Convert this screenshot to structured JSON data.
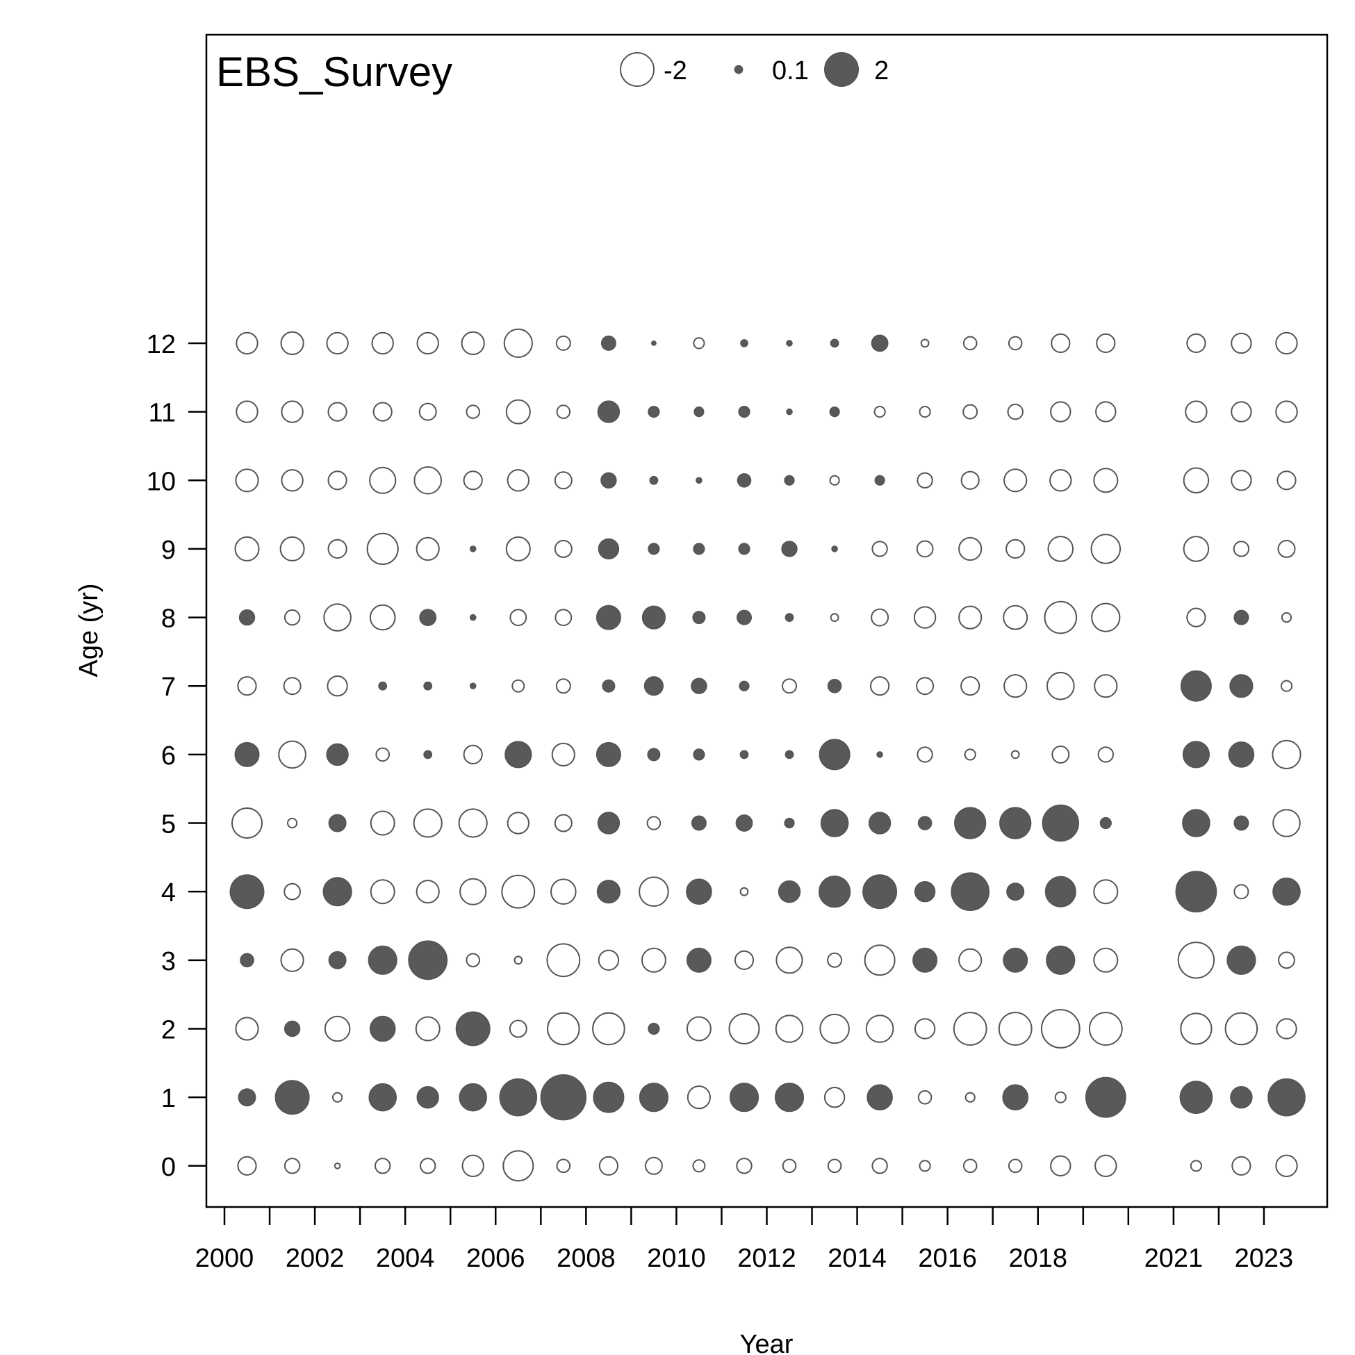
{
  "chart_data": {
    "type": "scatter",
    "subtype": "bubble",
    "title": "EBS_Survey",
    "xlabel": "Year",
    "ylabel": "Age (yr)",
    "xlim": [
      1999.6,
      2024.4
    ],
    "ylim": [
      -0.6,
      16.5
    ],
    "x_ticks": [
      2000,
      2001,
      2002,
      2003,
      2004,
      2005,
      2006,
      2007,
      2008,
      2009,
      2010,
      2011,
      2012,
      2013,
      2014,
      2015,
      2016,
      2017,
      2018,
      2019,
      2020,
      2021,
      2022,
      2023
    ],
    "x_tick_labels": [
      "2000",
      "2002",
      "2004",
      "2006",
      "2008",
      "2010",
      "2012",
      "2014",
      "2016",
      "2018",
      "2021",
      "2023"
    ],
    "y_ticks": [
      0,
      1,
      2,
      3,
      4,
      5,
      6,
      7,
      8,
      9,
      10,
      11,
      12
    ],
    "y_tick_labels": [
      "0",
      "1",
      "2",
      "3",
      "4",
      "5",
      "6",
      "7",
      "8",
      "9",
      "10",
      "11",
      "12"
    ],
    "grid": false,
    "legend": {
      "placement": "top-center",
      "entries": [
        {
          "label": "-2",
          "value": -2
        },
        {
          "label": "0.1",
          "value": 0.1
        },
        {
          "label": "2",
          "value": 2
        }
      ]
    },
    "colors": {
      "positive_fill": "#595959",
      "negative_fill": "#ffffff",
      "stroke": "#555555"
    },
    "years": [
      2000.5,
      2001.5,
      2002.5,
      2003.5,
      2004.5,
      2005.5,
      2006.5,
      2007.5,
      2008.5,
      2009.5,
      2010.5,
      2011.5,
      2012.5,
      2013.5,
      2014.5,
      2015.5,
      2016.5,
      2017.5,
      2018.5,
      2019.5,
      2021.5,
      2022.5,
      2023.5
    ],
    "ages": [
      0,
      1,
      2,
      3,
      4,
      5,
      6,
      7,
      8,
      9,
      10,
      11,
      12
    ],
    "residuals": [
      [
        -0.6,
        -0.4,
        -0.05,
        -0.4,
        -0.4,
        -0.8,
        -1.6,
        -0.3,
        -0.6,
        -0.5,
        -0.25,
        -0.4,
        -0.3,
        -0.3,
        -0.4,
        -0.2,
        -0.3,
        -0.3,
        -0.7,
        -0.8,
        -0.2,
        -0.6,
        -0.8
      ],
      [
        0.5,
        2.0,
        -0.15,
        1.3,
        0.8,
        1.3,
        2.4,
        3.6,
        1.6,
        1.4,
        -0.9,
        1.4,
        1.4,
        -0.7,
        1.1,
        -0.3,
        -0.15,
        1.1,
        -0.2,
        2.8,
        1.8,
        0.8,
        2.4
      ],
      [
        -0.9,
        0.4,
        -1.1,
        1.1,
        -1.0,
        2.0,
        -0.5,
        -1.8,
        -1.8,
        0.2,
        -1.0,
        -1.6,
        -1.3,
        -1.5,
        -1.3,
        -0.7,
        -1.9,
        -1.9,
        -2.6,
        -1.9,
        -1.7,
        -1.8,
        -0.7
      ],
      [
        0.3,
        -0.9,
        0.5,
        1.4,
        2.6,
        -0.3,
        -0.1,
        -1.9,
        -0.7,
        -1.0,
        1.0,
        -0.6,
        -1.2,
        -0.35,
        -1.6,
        1.0,
        -0.9,
        1.0,
        1.4,
        -1.0,
        -2.3,
        1.4,
        -0.45
      ],
      [
        2.0,
        -0.45,
        1.4,
        -1.0,
        -0.9,
        -1.2,
        -1.9,
        -1.1,
        0.9,
        -1.5,
        1.1,
        -0.1,
        0.8,
        1.7,
        2.0,
        0.7,
        2.5,
        0.5,
        1.6,
        -1.0,
        2.9,
        -0.35,
        1.3
      ],
      [
        -1.6,
        -0.15,
        0.5,
        -1.0,
        -1.4,
        -1.4,
        -0.8,
        -0.5,
        0.8,
        -0.3,
        0.35,
        0.45,
        0.15,
        1.3,
        0.8,
        0.3,
        1.7,
        1.7,
        2.3,
        0.2,
        1.3,
        0.35,
        -1.3
      ],
      [
        1.0,
        -1.3,
        0.8,
        -0.3,
        0.1,
        -0.6,
        1.2,
        -0.9,
        1.0,
        0.25,
        0.2,
        0.1,
        0.1,
        1.6,
        0.05,
        -0.4,
        -0.2,
        -0.1,
        -0.5,
        -0.4,
        1.2,
        1.1,
        -1.4
      ],
      [
        -0.6,
        -0.5,
        -0.7,
        0.1,
        0.1,
        0.05,
        -0.25,
        -0.35,
        0.25,
        0.6,
        0.4,
        0.15,
        -0.35,
        0.3,
        -0.6,
        -0.5,
        -0.6,
        -0.9,
        -1.3,
        -0.9,
        1.6,
        0.9,
        -0.2
      ],
      [
        0.4,
        -0.4,
        -1.3,
        -1.1,
        0.45,
        0.05,
        -0.45,
        -0.45,
        1.0,
        0.9,
        0.25,
        0.35,
        0.1,
        -0.1,
        -0.5,
        -0.8,
        -0.9,
        -1.0,
        -1.8,
        -1.4,
        -0.6,
        0.35,
        -0.15
      ],
      [
        -1.0,
        -1.0,
        -0.6,
        -1.7,
        -0.9,
        0.05,
        -1.0,
        -0.5,
        0.7,
        0.2,
        0.2,
        0.2,
        0.4,
        0.05,
        -0.4,
        -0.45,
        -0.9,
        -0.6,
        -1.1,
        -1.5,
        -1.1,
        -0.4,
        -0.5
      ],
      [
        -0.9,
        -0.8,
        -0.6,
        -1.2,
        -1.3,
        -0.6,
        -0.8,
        -0.5,
        0.4,
        0.1,
        0.05,
        0.3,
        0.15,
        -0.15,
        0.15,
        -0.4,
        -0.55,
        -0.9,
        -0.8,
        -1.0,
        -1.1,
        -0.7,
        -0.6
      ],
      [
        -0.8,
        -0.8,
        -0.6,
        -0.6,
        -0.5,
        -0.3,
        -1.0,
        -0.3,
        0.8,
        0.2,
        0.15,
        0.2,
        0.05,
        0.15,
        -0.2,
        -0.2,
        -0.35,
        -0.4,
        -0.7,
        -0.7,
        -0.8,
        -0.7,
        -0.8
      ],
      [
        -0.8,
        -0.9,
        -0.8,
        -0.8,
        -0.8,
        -0.9,
        -1.4,
        -0.35,
        0.35,
        0.03,
        -0.2,
        0.08,
        0.05,
        0.1,
        0.45,
        -0.1,
        -0.3,
        -0.3,
        -0.6,
        -0.6,
        -0.6,
        -0.7,
        -0.8
      ]
    ]
  }
}
